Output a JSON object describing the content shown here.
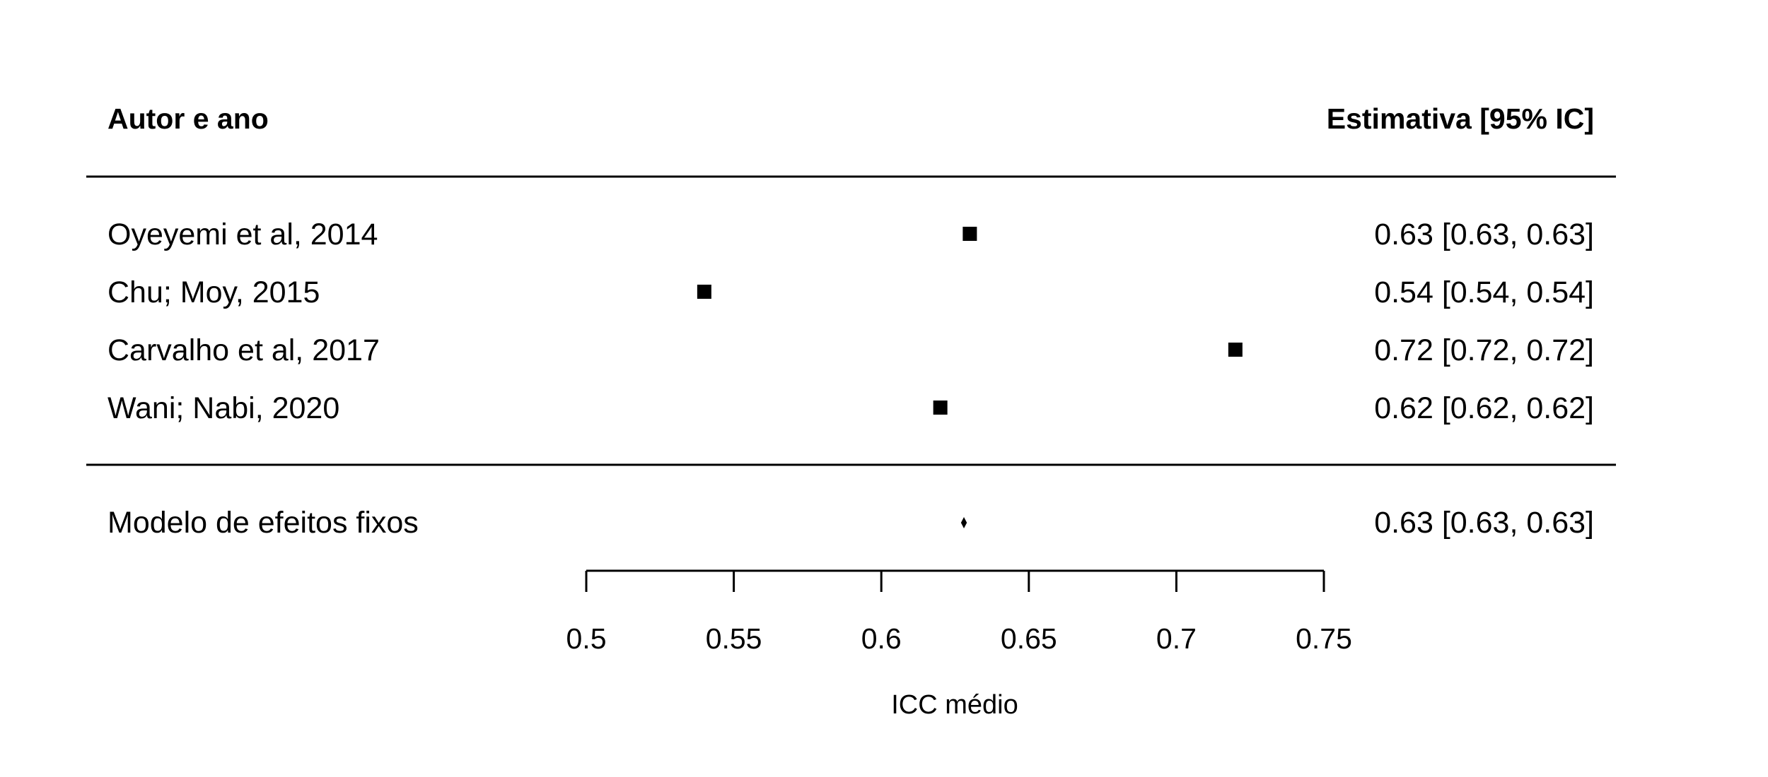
{
  "chart_data": {
    "type": "forest",
    "header_left": "Autor e ano",
    "header_right": "Estimativa [95% IC]",
    "studies": [
      {
        "label": "Oyeyemi et al, 2014",
        "estimate": 0.63,
        "ci_low": 0.63,
        "ci_high": 0.63,
        "text": "0.63 [0.63, 0.63]"
      },
      {
        "label": "Chu; Moy, 2015",
        "estimate": 0.54,
        "ci_low": 0.54,
        "ci_high": 0.54,
        "text": "0.54 [0.54, 0.54]"
      },
      {
        "label": "Carvalho et al, 2017",
        "estimate": 0.72,
        "ci_low": 0.72,
        "ci_high": 0.72,
        "text": "0.72 [0.72, 0.72]"
      },
      {
        "label": "Wani; Nabi, 2020",
        "estimate": 0.62,
        "ci_low": 0.62,
        "ci_high": 0.62,
        "text": "0.62 [0.62, 0.62]"
      }
    ],
    "summary": {
      "label": "Modelo de efeitos fixos",
      "estimate": 0.628,
      "ci_low": 0.627,
      "ci_high": 0.629,
      "text": "0.63 [0.63, 0.63]"
    },
    "x_ticks": [
      "0.5",
      "0.55",
      "0.6",
      "0.65",
      "0.7",
      "0.75"
    ],
    "xlim": [
      0.5,
      0.75
    ],
    "xlabel": "ICC médio",
    "marker_color": "#000000"
  }
}
